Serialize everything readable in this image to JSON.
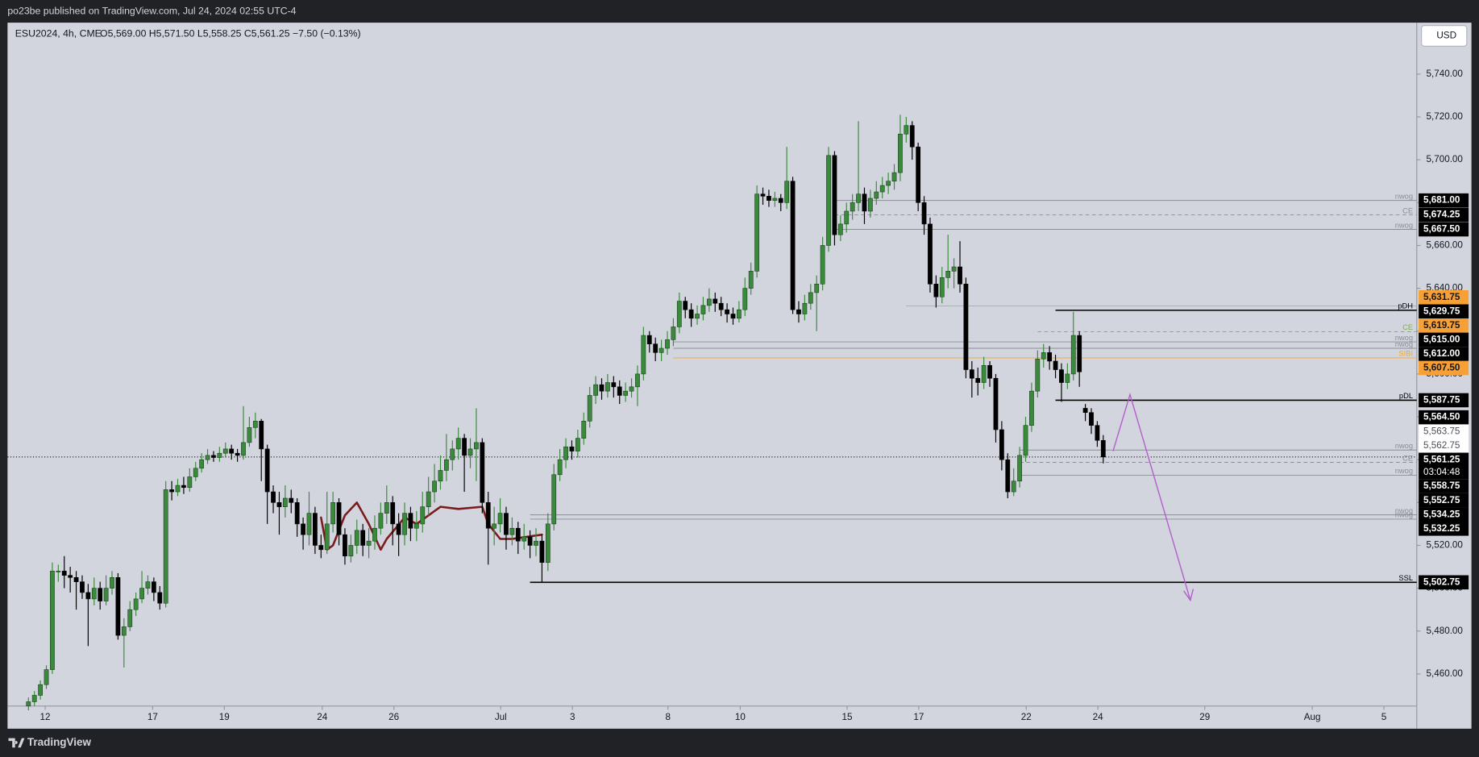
{
  "header": "po23be published on TradingView.com, Jul 24, 2024 02:55 UTC-4",
  "footer": "TradingView",
  "chart_data": {
    "type": "candlestick",
    "title": "ESU2024, 4h, CME",
    "ohlc_text": "O5,569.00 H5,571.50 L5,558.25 C5,561.25 −7.50 (−0.13%)",
    "currency": "USD",
    "up_color": "#3a8a3c",
    "down_color": "#000000",
    "xlim": [
      -3.5,
      232.5
    ],
    "xticks": [
      {
        "value": 2.8,
        "label": "12"
      },
      {
        "value": 20.8,
        "label": "17"
      },
      {
        "value": 32.8,
        "label": "19"
      },
      {
        "value": 49.2,
        "label": "24"
      },
      {
        "value": 61.2,
        "label": "26"
      },
      {
        "value": 79.1,
        "label": "Jul"
      },
      {
        "value": 91.1,
        "label": "3"
      },
      {
        "value": 107.1,
        "label": "8"
      },
      {
        "value": 119.2,
        "label": "10"
      },
      {
        "value": 137.1,
        "label": "15"
      },
      {
        "value": 149.1,
        "label": "17"
      },
      {
        "value": 167.1,
        "label": "22"
      },
      {
        "value": 179.1,
        "label": "24"
      },
      {
        "value": 197,
        "label": "29"
      },
      {
        "value": 215,
        "label": "Aug"
      },
      {
        "value": 227,
        "label": "5"
      }
    ],
    "ylim": [
      5445,
      5764
    ],
    "yticks": [
      {
        "value": 5740,
        "label": "5,740.00"
      },
      {
        "value": 5720,
        "label": "5,720.00"
      },
      {
        "value": 5700,
        "label": "5,700.00"
      },
      {
        "value": 5680,
        "label": "5,680.00"
      },
      {
        "value": 5660,
        "label": "5,660.00"
      },
      {
        "value": 5640,
        "label": "5,640.00"
      },
      {
        "value": 5620,
        "label": "5,620.00"
      },
      {
        "value": 5600,
        "label": "5,600.00"
      },
      {
        "value": 5580,
        "label": "5,580.00"
      },
      {
        "value": 5560,
        "label": "5,560.00"
      },
      {
        "value": 5540,
        "label": "5,540.00"
      },
      {
        "value": 5520,
        "label": "5,520.00"
      },
      {
        "value": 5500,
        "label": "5,500.00"
      },
      {
        "value": 5480,
        "label": "5,480.00"
      },
      {
        "value": 5460,
        "label": "5,460.00"
      }
    ],
    "grid": false,
    "candles": [
      [
        5445,
        5449,
        5443,
        5447
      ],
      [
        5447,
        5452,
        5445,
        5450
      ],
      [
        5450,
        5457,
        5448,
        5455
      ],
      [
        5455,
        5464,
        5453,
        5462
      ],
      [
        5462,
        5512,
        5460,
        5508
      ],
      [
        5508,
        5511,
        5503,
        5508
      ],
      [
        5508,
        5515,
        5500,
        5506
      ],
      [
        5506,
        5510,
        5498,
        5505
      ],
      [
        5505,
        5508,
        5490,
        5503
      ],
      [
        5503,
        5506,
        5495,
        5498
      ],
      [
        5498,
        5502,
        5473,
        5495
      ],
      [
        5495,
        5505,
        5492,
        5500
      ],
      [
        5500,
        5503,
        5490,
        5494
      ],
      [
        5494,
        5506,
        5492,
        5500
      ],
      [
        5500,
        5508,
        5497,
        5505
      ],
      [
        5505,
        5507,
        5476,
        5478
      ],
      [
        5478,
        5486,
        5463,
        5482
      ],
      [
        5482,
        5494,
        5480,
        5490
      ],
      [
        5490,
        5498,
        5487,
        5495
      ],
      [
        5495,
        5508,
        5493,
        5500
      ],
      [
        5500,
        5506,
        5497,
        5503
      ],
      [
        5503,
        5505,
        5494,
        5498
      ],
      [
        5498,
        5501,
        5490,
        5493
      ],
      [
        5493,
        5550,
        5491,
        5546
      ],
      [
        5546,
        5550,
        5541,
        5545
      ],
      [
        5545,
        5551,
        5543,
        5548
      ],
      [
        5548,
        5552,
        5544,
        5547
      ],
      [
        5547,
        5556,
        5545,
        5552
      ],
      [
        5552,
        5559,
        5550,
        5556
      ],
      [
        5556,
        5563,
        5554,
        5560
      ],
      [
        5560,
        5565,
        5558,
        5562
      ],
      [
        5562,
        5564,
        5559,
        5561
      ],
      [
        5561,
        5566,
        5559,
        5563
      ],
      [
        5563,
        5568,
        5561,
        5565
      ],
      [
        5565,
        5567,
        5560,
        5563
      ],
      [
        5563,
        5565,
        5559,
        5562
      ],
      [
        5562,
        5585,
        5560,
        5568
      ],
      [
        5568,
        5580,
        5566,
        5575
      ],
      [
        5575,
        5582,
        5570,
        5578
      ],
      [
        5578,
        5579,
        5550,
        5565
      ],
      [
        5565,
        5567,
        5530,
        5545
      ],
      [
        5545,
        5548,
        5535,
        5540
      ],
      [
        5540,
        5545,
        5525,
        5538
      ],
      [
        5538,
        5548,
        5533,
        5542
      ],
      [
        5542,
        5546,
        5535,
        5540
      ],
      [
        5540,
        5542,
        5524,
        5530
      ],
      [
        5530,
        5533,
        5518,
        5525
      ],
      [
        5525,
        5545,
        5520,
        5535
      ],
      [
        5535,
        5538,
        5516,
        5520
      ],
      [
        5520,
        5525,
        5514,
        5518
      ],
      [
        5518,
        5545,
        5516,
        5530
      ],
      [
        5530,
        5545,
        5526,
        5540
      ],
      [
        5540,
        5542,
        5520,
        5525
      ],
      [
        5525,
        5528,
        5511,
        5515
      ],
      [
        5515,
        5525,
        5512,
        5520
      ],
      [
        5520,
        5532,
        5516,
        5527
      ],
      [
        5527,
        5530,
        5515,
        5520
      ],
      [
        5520,
        5528,
        5514,
        5522
      ],
      [
        5522,
        5534,
        5518,
        5528
      ],
      [
        5528,
        5540,
        5525,
        5535
      ],
      [
        5535,
        5548,
        5530,
        5540
      ],
      [
        5540,
        5543,
        5520,
        5530
      ],
      [
        5530,
        5535,
        5515,
        5525
      ],
      [
        5525,
        5540,
        5520,
        5535
      ],
      [
        5535,
        5538,
        5522,
        5528
      ],
      [
        5528,
        5536,
        5522,
        5530
      ],
      [
        5530,
        5545,
        5526,
        5538
      ],
      [
        5538,
        5552,
        5534,
        5545
      ],
      [
        5545,
        5558,
        5540,
        5550
      ],
      [
        5550,
        5562,
        5546,
        5555
      ],
      [
        5555,
        5572,
        5550,
        5560
      ],
      [
        5560,
        5569,
        5555,
        5565
      ],
      [
        5565,
        5575,
        5560,
        5570
      ],
      [
        5570,
        5572,
        5545,
        5562
      ],
      [
        5562,
        5570,
        5556,
        5565
      ],
      [
        5565,
        5584,
        5550,
        5568
      ],
      [
        5568,
        5570,
        5535,
        5540
      ],
      [
        5540,
        5545,
        5511,
        5528
      ],
      [
        5528,
        5538,
        5520,
        5530
      ],
      [
        5530,
        5542,
        5526,
        5535
      ],
      [
        5535,
        5538,
        5518,
        5525
      ],
      [
        5525,
        5533,
        5520,
        5528
      ],
      [
        5528,
        5531,
        5516,
        5522
      ],
      [
        5522,
        5530,
        5518,
        5524
      ],
      [
        5524,
        5527,
        5514,
        5520
      ],
      [
        5520,
        5528,
        5515,
        5522
      ],
      [
        5522,
        5525,
        5503,
        5512
      ],
      [
        5512,
        5535,
        5508,
        5530
      ],
      [
        5530,
        5558,
        5527,
        5553
      ],
      [
        5553,
        5565,
        5550,
        5560
      ],
      [
        5560,
        5570,
        5556,
        5566
      ],
      [
        5566,
        5569,
        5560,
        5564
      ],
      [
        5564,
        5574,
        5561,
        5570
      ],
      [
        5570,
        5582,
        5567,
        5578
      ],
      [
        5578,
        5594,
        5575,
        5590
      ],
      [
        5590,
        5599,
        5586,
        5595
      ],
      [
        5595,
        5598,
        5588,
        5592
      ],
      [
        5592,
        5600,
        5589,
        5596
      ],
      [
        5596,
        5599,
        5589,
        5594
      ],
      [
        5594,
        5597,
        5586,
        5590
      ],
      [
        5590,
        5596,
        5587,
        5592
      ],
      [
        5592,
        5598,
        5589,
        5594
      ],
      [
        5594,
        5604,
        5585,
        5600
      ],
      [
        5600,
        5622,
        5597,
        5618
      ],
      [
        5618,
        5620,
        5610,
        5614
      ],
      [
        5614,
        5617,
        5606,
        5610
      ],
      [
        5610,
        5616,
        5606,
        5612
      ],
      [
        5612,
        5620,
        5609,
        5616
      ],
      [
        5616,
        5626,
        5613,
        5622
      ],
      [
        5622,
        5638,
        5619,
        5634
      ],
      [
        5634,
        5636,
        5626,
        5630
      ],
      [
        5630,
        5633,
        5622,
        5626
      ],
      [
        5626,
        5632,
        5623,
        5628
      ],
      [
        5628,
        5636,
        5625,
        5632
      ],
      [
        5632,
        5640,
        5629,
        5635
      ],
      [
        5635,
        5638,
        5629,
        5633
      ],
      [
        5633,
        5636,
        5627,
        5630
      ],
      [
        5630,
        5633,
        5624,
        5628
      ],
      [
        5628,
        5631,
        5623,
        5626
      ],
      [
        5626,
        5634,
        5624,
        5630
      ],
      [
        5630,
        5645,
        5627,
        5640
      ],
      [
        5640,
        5652,
        5637,
        5648
      ],
      [
        5648,
        5688,
        5645,
        5684
      ],
      [
        5684,
        5687,
        5679,
        5683
      ],
      [
        5683,
        5686,
        5678,
        5681
      ],
      [
        5681,
        5685,
        5678,
        5682
      ],
      [
        5682,
        5684,
        5676,
        5680
      ],
      [
        5680,
        5706,
        5677,
        5690
      ],
      [
        5690,
        5692,
        5628,
        5630
      ],
      [
        5630,
        5634,
        5624,
        5628
      ],
      [
        5628,
        5637,
        5625,
        5633
      ],
      [
        5633,
        5642,
        5630,
        5638
      ],
      [
        5638,
        5646,
        5620,
        5642
      ],
      [
        5642,
        5664,
        5639,
        5660
      ],
      [
        5660,
        5706,
        5657,
        5702
      ],
      [
        5702,
        5704,
        5660,
        5665
      ],
      [
        5665,
        5674,
        5662,
        5670
      ],
      [
        5670,
        5680,
        5666,
        5676
      ],
      [
        5676,
        5684,
        5672,
        5680
      ],
      [
        5680,
        5718,
        5676,
        5684
      ],
      [
        5684,
        5687,
        5670,
        5676
      ],
      [
        5676,
        5686,
        5673,
        5682
      ],
      [
        5682,
        5690,
        5679,
        5685
      ],
      [
        5685,
        5692,
        5682,
        5688
      ],
      [
        5688,
        5694,
        5684,
        5690
      ],
      [
        5690,
        5698,
        5686,
        5694
      ],
      [
        5694,
        5721,
        5690,
        5712
      ],
      [
        5712,
        5720,
        5708,
        5716
      ],
      [
        5716,
        5718,
        5700,
        5706
      ],
      [
        5706,
        5708,
        5676,
        5680
      ],
      [
        5680,
        5683,
        5665,
        5670
      ],
      [
        5670,
        5673,
        5638,
        5642
      ],
      [
        5642,
        5646,
        5631,
        5636
      ],
      [
        5636,
        5650,
        5633,
        5645
      ],
      [
        5645,
        5665,
        5640,
        5648
      ],
      [
        5648,
        5654,
        5640,
        5650
      ],
      [
        5650,
        5662,
        5638,
        5642
      ],
      [
        5642,
        5645,
        5598,
        5602
      ],
      [
        5602,
        5606,
        5589,
        5598
      ],
      [
        5598,
        5603,
        5590,
        5596
      ],
      [
        5596,
        5608,
        5593,
        5604
      ],
      [
        5604,
        5606,
        5594,
        5598
      ],
      [
        5598,
        5600,
        5568,
        5574
      ],
      [
        5574,
        5578,
        5555,
        5560
      ],
      [
        5560,
        5563,
        5542,
        5545
      ],
      [
        5545,
        5556,
        5543,
        5550
      ],
      [
        5550,
        5566,
        5547,
        5562
      ],
      [
        5562,
        5580,
        5559,
        5576
      ],
      [
        5576,
        5596,
        5573,
        5592
      ],
      [
        5592,
        5611,
        5589,
        5607
      ],
      [
        5607,
        5614,
        5603,
        5610
      ],
      [
        5610,
        5613,
        5602,
        5606
      ],
      [
        5606,
        5609,
        5598,
        5602
      ],
      [
        5602,
        5605,
        5587,
        5596
      ],
      [
        5596,
        5605,
        5593,
        5600
      ],
      [
        5600,
        5629,
        5597,
        5618
      ],
      [
        5618,
        5620,
        5594,
        5601
      ],
      [
        5584,
        5586,
        5578,
        5582
      ],
      [
        5582,
        5584,
        5572,
        5576
      ],
      [
        5576,
        5578,
        5566,
        5569
      ],
      [
        5569,
        5571.5,
        5558.25,
        5561.25
      ]
    ],
    "indicator": {
      "color": "#7a1c1c",
      "x": [
        49,
        50,
        51,
        53,
        55,
        57,
        59,
        60,
        63,
        65,
        67,
        69,
        72,
        76,
        77,
        79,
        81,
        86
      ],
      "values": [
        5533,
        5518,
        5520,
        5534,
        5540,
        5530,
        5518,
        5523,
        5533,
        5530,
        5534,
        5538,
        5537,
        5538,
        5530,
        5523,
        5523,
        5525
      ]
    },
    "levels": [
      {
        "value": 5681,
        "label": "5,681.00",
        "tag": "nwog",
        "color": "#8a8d96",
        "box": "#000000",
        "start": 135
      },
      {
        "value": 5674.25,
        "label": "5,674.25",
        "tag": "CE",
        "color": "#8a8d96",
        "box": "#000000",
        "start": 135,
        "style": "dashed"
      },
      {
        "value": 5667.5,
        "label": "5,667.50",
        "tag": "nwog",
        "color": "#8a8d96",
        "box": "#000000",
        "start": 135
      },
      {
        "value": 5631.75,
        "label": "5,631.75",
        "color": "#f5a623",
        "box": "#f7a035",
        "start": 147
      },
      {
        "value": 5629.75,
        "label": "5,629.75",
        "tag": "pDH",
        "color": "#000000",
        "box": "#000000",
        "start": 172
      },
      {
        "value": 5619.75,
        "label": "5,619.75",
        "tag": "CE",
        "color": "#7cb342",
        "box": "#f7a035",
        "start": 169,
        "style": "dashed"
      },
      {
        "value": 5615,
        "label": "5,615.00",
        "tag": "nwog",
        "color": "#8a8d96",
        "box": "#000000",
        "start": 108
      },
      {
        "value": 5612,
        "label": "5,612.00",
        "tag": "nwog",
        "color": "#8a8d96",
        "box": "#000000",
        "start": 108
      },
      {
        "value": 5607.5,
        "label": "5,607.50",
        "tag": "SIBI",
        "color": "#f5a623",
        "box": "#f7a035",
        "start": 108
      },
      {
        "value": 5587.75,
        "label": "5,587.75",
        "tag": "pDL",
        "color": "#000000",
        "box": "#000000",
        "start": 172
      },
      {
        "value": 5564.5,
        "label": "5,564.50",
        "tag": "nwog",
        "color": "#8a8d96",
        "box": "#000000",
        "start": 166
      },
      {
        "value": 5563.75,
        "label": "5,563.75",
        "box": "#ffffff"
      },
      {
        "value": 5562.75,
        "label": "5,562.75",
        "box": "#ffffff"
      },
      {
        "value": 5561.25,
        "label": "5,561.25",
        "sub": "03:04:48",
        "color": "#000000",
        "box": "#000000",
        "style": "dotted"
      },
      {
        "value": 5558.75,
        "label": "5,558.75",
        "tag": "CE",
        "color": "#8a8d96",
        "box": "#000000",
        "start": 166,
        "style": "dashed"
      },
      {
        "value": 5552.75,
        "label": "5,552.75",
        "tag": "nwog",
        "color": "#8a8d96",
        "box": "#000000",
        "start": 166
      },
      {
        "value": 5534.25,
        "label": "5,534.25",
        "tag": "nwog",
        "color": "#8a8d96",
        "box": "#000000",
        "start": 84
      },
      {
        "value": 5532.25,
        "label": "5,532.25",
        "tag": "nwog",
        "color": "#8a8d96",
        "box": "#000000",
        "start": 84
      },
      {
        "value": 5502.75,
        "label": "5,502.75",
        "tag": "SSL",
        "color": "#000000",
        "box": "#000000",
        "start": 84
      }
    ]
  }
}
